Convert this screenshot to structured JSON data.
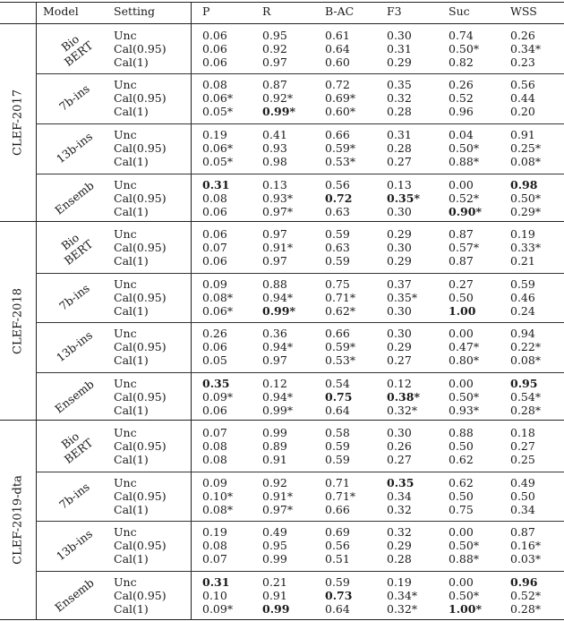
{
  "headers": {
    "model": "Model",
    "setting": "Setting",
    "p": "P",
    "r": "R",
    "bac": "B-AC",
    "f3": "F3",
    "suc": "Suc",
    "wss": "WSS"
  },
  "datasets": [
    {
      "name": "CLEF-2017",
      "groups": [
        {
          "model": [
            "Bio",
            "BERT"
          ],
          "rows": [
            {
              "setting": "Unc",
              "vals": [
                "0.06",
                "0.95",
                "0.61",
                "0.30",
                "0.74",
                "0.26"
              ]
            },
            {
              "setting": "Cal(0.95)",
              "vals": [
                "0.06",
                "0.92",
                "0.64",
                "0.31",
                "0.50*",
                "0.34*"
              ]
            },
            {
              "setting": "Cal(1)",
              "vals": [
                "0.06",
                "0.97",
                "0.60",
                "0.29",
                "0.82",
                "0.23"
              ]
            }
          ]
        },
        {
          "model": [
            "7b-ins"
          ],
          "rows": [
            {
              "setting": "Unc",
              "vals": [
                "0.08",
                "0.87",
                "0.72",
                "0.35",
                "0.26",
                "0.56"
              ]
            },
            {
              "setting": "Cal(0.95)",
              "vals": [
                "0.06*",
                "0.92*",
                "0.69*",
                "0.32",
                "0.52",
                "0.44"
              ]
            },
            {
              "setting": "Cal(1)",
              "vals": [
                "0.05*",
                "0.99*",
                "0.60*",
                "0.28",
                "0.96",
                "0.20"
              ],
              "bold": [
                1
              ]
            }
          ]
        },
        {
          "model": [
            "13b-ins"
          ],
          "rows": [
            {
              "setting": "Unc",
              "vals": [
                "0.19",
                "0.41",
                "0.66",
                "0.31",
                "0.04",
                "0.91"
              ]
            },
            {
              "setting": "Cal(0.95)",
              "vals": [
                "0.06*",
                "0.93",
                "0.59*",
                "0.28",
                "0.50*",
                "0.25*"
              ]
            },
            {
              "setting": "Cal(1)",
              "vals": [
                "0.05*",
                "0.98",
                "0.53*",
                "0.27",
                "0.88*",
                "0.08*"
              ]
            }
          ]
        },
        {
          "model": [
            "Ensemb"
          ],
          "rows": [
            {
              "setting": "Unc",
              "vals": [
                "0.31",
                "0.13",
                "0.56",
                "0.13",
                "0.00",
                "0.98"
              ],
              "bold": [
                0,
                5
              ]
            },
            {
              "setting": "Cal(0.95)",
              "vals": [
                "0.08",
                "0.93*",
                "0.72",
                "0.35*",
                "0.52*",
                "0.50*"
              ],
              "bold": [
                2,
                3
              ]
            },
            {
              "setting": "Cal(1)",
              "vals": [
                "0.06",
                "0.97*",
                "0.63",
                "0.30",
                "0.90*",
                "0.29*"
              ],
              "bold": [
                4
              ]
            }
          ]
        }
      ]
    },
    {
      "name": "CLEF-2018",
      "groups": [
        {
          "model": [
            "Bio",
            "BERT"
          ],
          "rows": [
            {
              "setting": "Unc",
              "vals": [
                "0.06",
                "0.97",
                "0.59",
                "0.29",
                "0.87",
                "0.19"
              ]
            },
            {
              "setting": "Cal(0.95)",
              "vals": [
                "0.07",
                "0.91*",
                "0.63",
                "0.30",
                "0.57*",
                "0.33*"
              ]
            },
            {
              "setting": "Cal(1)",
              "vals": [
                "0.06",
                "0.97",
                "0.59",
                "0.29",
                "0.87",
                "0.21"
              ]
            }
          ]
        },
        {
          "model": [
            "7b-ins"
          ],
          "rows": [
            {
              "setting": "Unc",
              "vals": [
                "0.09",
                "0.88",
                "0.75",
                "0.37",
                "0.27",
                "0.59"
              ]
            },
            {
              "setting": "Cal(0.95)",
              "vals": [
                "0.08*",
                "0.94*",
                "0.71*",
                "0.35*",
                "0.50",
                "0.46"
              ]
            },
            {
              "setting": "Cal(1)",
              "vals": [
                "0.06*",
                "0.99*",
                "0.62*",
                "0.30",
                "1.00",
                "0.24"
              ],
              "bold": [
                1,
                4
              ]
            }
          ]
        },
        {
          "model": [
            "13b-ins"
          ],
          "rows": [
            {
              "setting": "Unc",
              "vals": [
                "0.26",
                "0.36",
                "0.66",
                "0.30",
                "0.00",
                "0.94"
              ]
            },
            {
              "setting": "Cal(0.95)",
              "vals": [
                "0.06",
                "0.94*",
                "0.59*",
                "0.29",
                "0.47*",
                "0.22*"
              ]
            },
            {
              "setting": "Cal(1)",
              "vals": [
                "0.05",
                "0.97",
                "0.53*",
                "0.27",
                "0.80*",
                "0.08*"
              ]
            }
          ]
        },
        {
          "model": [
            "Ensemb"
          ],
          "rows": [
            {
              "setting": "Unc",
              "vals": [
                "0.35",
                "0.12",
                "0.54",
                "0.12",
                "0.00",
                "0.95"
              ],
              "bold": [
                0,
                5
              ]
            },
            {
              "setting": "Cal(0.95)",
              "vals": [
                "0.09*",
                "0.94*",
                "0.75",
                "0.38*",
                "0.50*",
                "0.54*"
              ],
              "bold": [
                2,
                3
              ]
            },
            {
              "setting": "Cal(1)",
              "vals": [
                "0.06",
                "0.99*",
                "0.64",
                "0.32*",
                "0.93*",
                "0.28*"
              ]
            }
          ]
        }
      ]
    },
    {
      "name": "CLEF-2019-dta",
      "groups": [
        {
          "model": [
            "Bio",
            "BERT"
          ],
          "rows": [
            {
              "setting": "Unc",
              "vals": [
                "0.07",
                "0.99",
                "0.58",
                "0.30",
                "0.88",
                "0.18"
              ]
            },
            {
              "setting": "Cal(0.95)",
              "vals": [
                "0.08",
                "0.89",
                "0.59",
                "0.26",
                "0.50",
                "0.27"
              ]
            },
            {
              "setting": "Cal(1)",
              "vals": [
                "0.08",
                "0.91",
                "0.59",
                "0.27",
                "0.62",
                "0.25"
              ]
            }
          ]
        },
        {
          "model": [
            "7b-ins"
          ],
          "rows": [
            {
              "setting": "Unc",
              "vals": [
                "0.09",
                "0.92",
                "0.71",
                "0.35",
                "0.62",
                "0.49"
              ],
              "bold": [
                3
              ]
            },
            {
              "setting": "Cal(0.95)",
              "vals": [
                "0.10*",
                "0.91*",
                "0.71*",
                "0.34",
                "0.50",
                "0.50"
              ]
            },
            {
              "setting": "Cal(1)",
              "vals": [
                "0.08*",
                "0.97*",
                "0.66",
                "0.32",
                "0.75",
                "0.34"
              ]
            }
          ]
        },
        {
          "model": [
            "13b-ins"
          ],
          "rows": [
            {
              "setting": "Unc",
              "vals": [
                "0.19",
                "0.49",
                "0.69",
                "0.32",
                "0.00",
                "0.87"
              ]
            },
            {
              "setting": "Cal(0.95)",
              "vals": [
                "0.08",
                "0.95",
                "0.56",
                "0.29",
                "0.50*",
                "0.16*"
              ]
            },
            {
              "setting": "Cal(1)",
              "vals": [
                "0.07",
                "0.99",
                "0.51",
                "0.28",
                "0.88*",
                "0.03*"
              ]
            }
          ]
        },
        {
          "model": [
            "Ensemb"
          ],
          "rows": [
            {
              "setting": "Unc",
              "vals": [
                "0.31",
                "0.21",
                "0.59",
                "0.19",
                "0.00",
                "0.96"
              ],
              "bold": [
                0,
                5
              ]
            },
            {
              "setting": "Cal(0.95)",
              "vals": [
                "0.10",
                "0.91",
                "0.73",
                "0.34*",
                "0.50*",
                "0.52*"
              ],
              "bold": [
                2
              ]
            },
            {
              "setting": "Cal(1)",
              "vals": [
                "0.09*",
                "0.99",
                "0.64",
                "0.32*",
                "1.00*",
                "0.28*"
              ],
              "bold": [
                1,
                4
              ]
            }
          ]
        }
      ]
    }
  ]
}
